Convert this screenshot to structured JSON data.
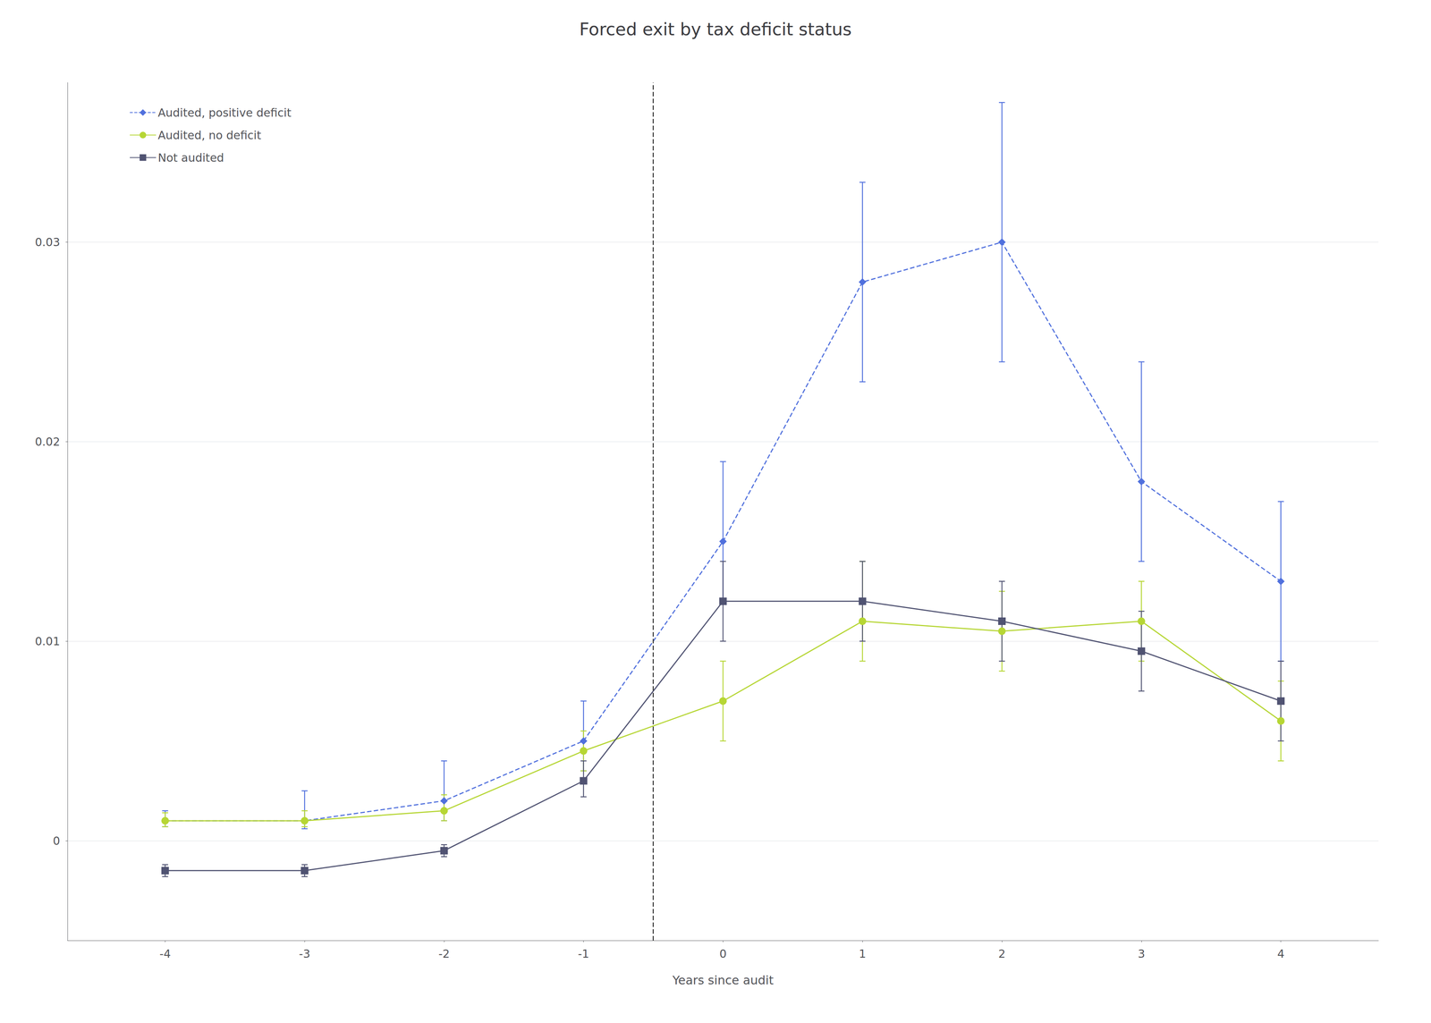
{
  "chart_data": {
    "type": "line",
    "title": "Forced exit by tax deficit status",
    "x_label": "Years since audit",
    "x": [
      -4,
      -3,
      -2,
      -1,
      0,
      1,
      2,
      3,
      4
    ],
    "series": [
      {
        "name": "Audited, positive deficit",
        "marker": "diamond",
        "line_style": "dashed",
        "values": [
          0.001,
          0.001,
          0.002,
          0.005,
          0.015,
          0.028,
          0.03,
          0.018,
          0.013
        ],
        "yerr_lo": [
          0.0003,
          0.0004,
          0.001,
          0.0015,
          0.003,
          0.005,
          0.006,
          0.004,
          0.004
        ],
        "yerr_hi": [
          0.0005,
          0.0015,
          0.002,
          0.002,
          0.004,
          0.005,
          0.007,
          0.006,
          0.004
        ]
      },
      {
        "name": "Audited, no deficit",
        "marker": "circle",
        "line_style": "solid",
        "values": [
          0.001,
          0.001,
          0.0015,
          0.0045,
          0.007,
          0.011,
          0.0105,
          0.011,
          0.006
        ],
        "yerr_lo": [
          0.0003,
          0.0003,
          0.0005,
          0.001,
          0.002,
          0.002,
          0.002,
          0.002,
          0.002
        ],
        "yerr_hi": [
          0.0004,
          0.0005,
          0.0008,
          0.001,
          0.002,
          0.003,
          0.002,
          0.002,
          0.002
        ]
      },
      {
        "name": "Not audited",
        "marker": "square",
        "line_style": "solid",
        "values": [
          -0.0015,
          -0.0015,
          -0.0005,
          0.003,
          0.012,
          0.012,
          0.011,
          0.0095,
          0.007
        ],
        "yerr_lo": [
          0.0003,
          0.0003,
          0.0003,
          0.0008,
          0.002,
          0.002,
          0.002,
          0.002,
          0.002
        ],
        "yerr_hi": [
          0.0003,
          0.0003,
          0.0003,
          0.001,
          0.002,
          0.002,
          0.002,
          0.002,
          0.002
        ]
      }
    ],
    "vline": -0.5,
    "xlim": [
      -4.7,
      4.7
    ],
    "xticks": [
      -4,
      -3,
      -2,
      -1,
      0,
      1,
      2,
      3,
      4
    ],
    "ylim": [
      -0.005,
      0.038
    ],
    "yticks": [
      0,
      0.01,
      0.02,
      0.03
    ],
    "grid": "y",
    "legend": "upper left"
  }
}
